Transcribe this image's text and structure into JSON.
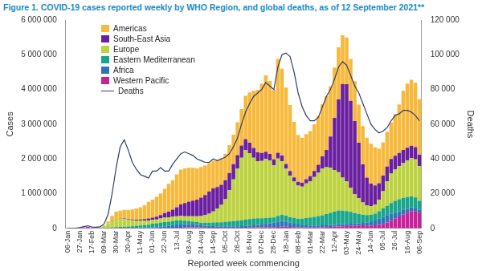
{
  "chart_data": {
    "type": "bar",
    "title": "Figure 1. COVID-19 cases reported weekly by WHO Region, and global deaths, as of 12 September 2021**",
    "x_label": "Reported week commencing",
    "y_label": "Cases",
    "y2_label": "Deaths",
    "stacked": true,
    "grid": false,
    "legend": "top-left",
    "categories": [
      "06-Jan",
      null,
      null,
      "27-Jan",
      null,
      null,
      "17-Feb",
      null,
      null,
      "09-Mar",
      null,
      null,
      "30-Mar",
      null,
      null,
      "20-Apr",
      null,
      null,
      "11-May",
      null,
      null,
      "01-Jun",
      null,
      null,
      "22-Jun",
      null,
      null,
      "13-Jul",
      null,
      null,
      "03-Aug",
      null,
      null,
      "24-Aug",
      null,
      null,
      "14-Sep",
      null,
      null,
      "05-Oct",
      null,
      null,
      "26-Oct",
      null,
      null,
      "16-Nov",
      null,
      null,
      "07-Dec",
      null,
      null,
      "28-Dec",
      null,
      null,
      "18-Jan",
      null,
      null,
      "08-Feb",
      null,
      null,
      "01-Mar",
      null,
      null,
      "22-Mar",
      null,
      null,
      "12-Apr",
      null,
      null,
      "03-May",
      null,
      null,
      "24-May",
      null,
      null,
      "14-Jun",
      null,
      null,
      "05-Jul",
      null,
      null,
      "26-Jul",
      null,
      null,
      "16-Aug",
      null,
      null,
      "06-Sep"
    ],
    "ylim": [
      0,
      6000000
    ],
    "yticks": [
      0,
      {
        "value": 1000000,
        "label": "1 000 000"
      },
      {
        "value": 2000000,
        "label": "2 000 000"
      },
      {
        "value": 3000000,
        "label": "3 000 000"
      },
      {
        "value": 4000000,
        "label": "4 000 000"
      },
      {
        "value": 5000000,
        "label": "5 000 000"
      },
      {
        "value": 6000000,
        "label": "6 000 000"
      }
    ],
    "y2lim": [
      0,
      120000
    ],
    "y2ticks": [
      0,
      {
        "value": 20000,
        "label": "20 000"
      },
      {
        "value": 40000,
        "label": "40 000"
      },
      {
        "value": 60000,
        "label": "60 000"
      },
      {
        "value": 80000,
        "label": "80 000"
      },
      {
        "value": 100000,
        "label": "100 000"
      },
      {
        "value": 120000,
        "label": "120 000"
      }
    ],
    "series": [
      {
        "name": "Americas",
        "color": "#f7b93c",
        "values": [
          0,
          0,
          0,
          0,
          0,
          0,
          0,
          0,
          2000,
          10000,
          60000,
          150000,
          220000,
          230000,
          250000,
          260000,
          290000,
          320000,
          350000,
          400000,
          480000,
          520000,
          570000,
          620000,
          700000,
          800000,
          850000,
          950000,
          1000000,
          1000000,
          980000,
          950000,
          900000,
          880000,
          850000,
          820000,
          800000,
          780000,
          760000,
          760000,
          800000,
          850000,
          950000,
          1050000,
          1250000,
          1450000,
          1650000,
          1800000,
          2000000,
          2200000,
          2100000,
          2000000,
          2700000,
          2500000,
          2200000,
          1900000,
          1600000,
          1350000,
          1300000,
          1300000,
          1300000,
          1350000,
          1400000,
          1500000,
          1550000,
          1450000,
          1450000,
          1500000,
          1400000,
          1350000,
          1200000,
          1150000,
          1100000,
          1100000,
          1150000,
          1150000,
          1100000,
          1000000,
          950000,
          1000000,
          1050000,
          1200000,
          1400000,
          1700000,
          1850000,
          1900000,
          1850000,
          1600000
        ]
      },
      {
        "name": "South-East Asia",
        "color": "#6a1fa0",
        "values": [
          0,
          0,
          0,
          0,
          0,
          0,
          0,
          0,
          0,
          500,
          1000,
          2000,
          5000,
          8000,
          15000,
          20000,
          25000,
          30000,
          35000,
          45000,
          55000,
          65000,
          80000,
          100000,
          130000,
          160000,
          200000,
          260000,
          330000,
          380000,
          420000,
          450000,
          480000,
          530000,
          580000,
          640000,
          660000,
          620000,
          580000,
          550000,
          500000,
          440000,
          390000,
          350000,
          320000,
          300000,
          280000,
          250000,
          230000,
          210000,
          190000,
          170000,
          170000,
          160000,
          140000,
          130000,
          120000,
          110000,
          110000,
          120000,
          140000,
          170000,
          230000,
          350000,
          500000,
          900000,
          1500000,
          2100000,
          2700000,
          2800000,
          2500000,
          2100000,
          1600000,
          1100000,
          800000,
          650000,
          550000,
          480000,
          450000,
          430000,
          420000,
          400000,
          380000,
          380000,
          370000,
          360000,
          350000,
          330000
        ]
      },
      {
        "name": "Europe",
        "color": "#bcd33f",
        "values": [
          0,
          0,
          0,
          0,
          0,
          0,
          0,
          2000,
          15000,
          60000,
          120000,
          180000,
          220000,
          230000,
          220000,
          200000,
          170000,
          150000,
          140000,
          130000,
          120000,
          110000,
          110000,
          120000,
          130000,
          130000,
          130000,
          120000,
          130000,
          130000,
          140000,
          150000,
          170000,
          190000,
          220000,
          260000,
          320000,
          400000,
          500000,
          650000,
          900000,
          1200000,
          1500000,
          1800000,
          2000000,
          1900000,
          1750000,
          1650000,
          1650000,
          1700000,
          1650000,
          1500000,
          1650000,
          1550000,
          1350000,
          1200000,
          1050000,
          950000,
          920000,
          1000000,
          1050000,
          1150000,
          1250000,
          1350000,
          1350000,
          1300000,
          1200000,
          1100000,
          950000,
          850000,
          700000,
          550000,
          450000,
          350000,
          280000,
          250000,
          260000,
          330000,
          500000,
          700000,
          850000,
          900000,
          950000,
          1000000,
          1050000,
          1100000,
          1100000,
          1000000
        ]
      },
      {
        "name": "Eastern Mediterranean",
        "color": "#17a58b",
        "values": [
          0,
          0,
          0,
          0,
          0,
          0,
          0,
          1000,
          8000,
          10000,
          12000,
          15000,
          20000,
          25000,
          30000,
          35000,
          40000,
          50000,
          60000,
          65000,
          80000,
          100000,
          110000,
          115000,
          120000,
          120000,
          115000,
          110000,
          100000,
          95000,
          90000,
          85000,
          80000,
          80000,
          85000,
          95000,
          105000,
          115000,
          120000,
          130000,
          140000,
          150000,
          160000,
          170000,
          180000,
          190000,
          200000,
          190000,
          180000,
          170000,
          160000,
          150000,
          160000,
          170000,
          170000,
          160000,
          160000,
          170000,
          190000,
          210000,
          230000,
          250000,
          270000,
          290000,
          320000,
          350000,
          380000,
          400000,
          390000,
          370000,
          340000,
          300000,
          270000,
          240000,
          220000,
          210000,
          200000,
          210000,
          240000,
          270000,
          310000,
          340000,
          350000,
          350000,
          340000,
          320000,
          300000,
          260000
        ]
      },
      {
        "name": "Africa",
        "color": "#2f74b8",
        "values": [
          0,
          0,
          0,
          0,
          0,
          0,
          0,
          0,
          0,
          200,
          1000,
          2000,
          4000,
          5000,
          6000,
          8000,
          10000,
          12000,
          15000,
          18000,
          20000,
          25000,
          30000,
          40000,
          50000,
          60000,
          80000,
          100000,
          110000,
          100000,
          90000,
          80000,
          70000,
          60000,
          55000,
          50000,
          45000,
          40000,
          40000,
          40000,
          40000,
          40000,
          40000,
          45000,
          50000,
          55000,
          60000,
          70000,
          80000,
          95000,
          110000,
          130000,
          160000,
          170000,
          150000,
          120000,
          100000,
          80000,
          65000,
          60000,
          55000,
          55000,
          55000,
          55000,
          55000,
          55000,
          55000,
          60000,
          60000,
          65000,
          65000,
          65000,
          65000,
          70000,
          80000,
          100000,
          140000,
          180000,
          200000,
          210000,
          200000,
          170000,
          150000,
          130000,
          110000,
          100000,
          90000,
          80000
        ]
      },
      {
        "name": "Western Pacific",
        "color": "#c7219b",
        "values": [
          0,
          1000,
          3000,
          15000,
          25000,
          40000,
          10000,
          5000,
          5000,
          5000,
          6000,
          8000,
          10000,
          10000,
          12000,
          10000,
          9000,
          8000,
          7000,
          6000,
          6000,
          6000,
          7000,
          8000,
          8000,
          10000,
          12000,
          15000,
          20000,
          25000,
          30000,
          30000,
          28000,
          25000,
          22000,
          20000,
          18000,
          17000,
          16000,
          16000,
          17000,
          18000,
          18000,
          19000,
          20000,
          22000,
          25000,
          28000,
          30000,
          32000,
          35000,
          35000,
          40000,
          45000,
          45000,
          40000,
          35000,
          30000,
          25000,
          25000,
          25000,
          25000,
          28000,
          30000,
          35000,
          40000,
          45000,
          55000,
          60000,
          65000,
          70000,
          75000,
          80000,
          85000,
          80000,
          80000,
          85000,
          100000,
          130000,
          170000,
          220000,
          280000,
          340000,
          400000,
          450000,
          500000,
          500000,
          450000
        ]
      },
      {
        "name": "Deaths",
        "type": "line",
        "axis": "y2",
        "color": "#2e3b6e",
        "values": [
          0,
          0,
          100,
          400,
          1000,
          1500,
          800,
          700,
          900,
          2500,
          8000,
          20000,
          35000,
          47000,
          51000,
          45000,
          38000,
          34000,
          31000,
          30000,
          29000,
          33000,
          33000,
          35000,
          33000,
          33000,
          37000,
          40000,
          43000,
          44000,
          43000,
          42000,
          40000,
          39000,
          38000,
          38000,
          40000,
          39000,
          40000,
          41000,
          43000,
          47000,
          52000,
          60000,
          67000,
          72000,
          76000,
          78000,
          80000,
          84000,
          82000,
          80000,
          93000,
          100000,
          101000,
          99000,
          90000,
          78000,
          70000,
          65000,
          62000,
          62000,
          64000,
          70000,
          76000,
          80000,
          86000,
          93000,
          96000,
          94000,
          88000,
          82000,
          78000,
          72000,
          66000,
          60000,
          57000,
          55000,
          56000,
          58000,
          62000,
          65000,
          66000,
          68000,
          68000,
          67000,
          65000,
          62000
        ]
      }
    ]
  }
}
